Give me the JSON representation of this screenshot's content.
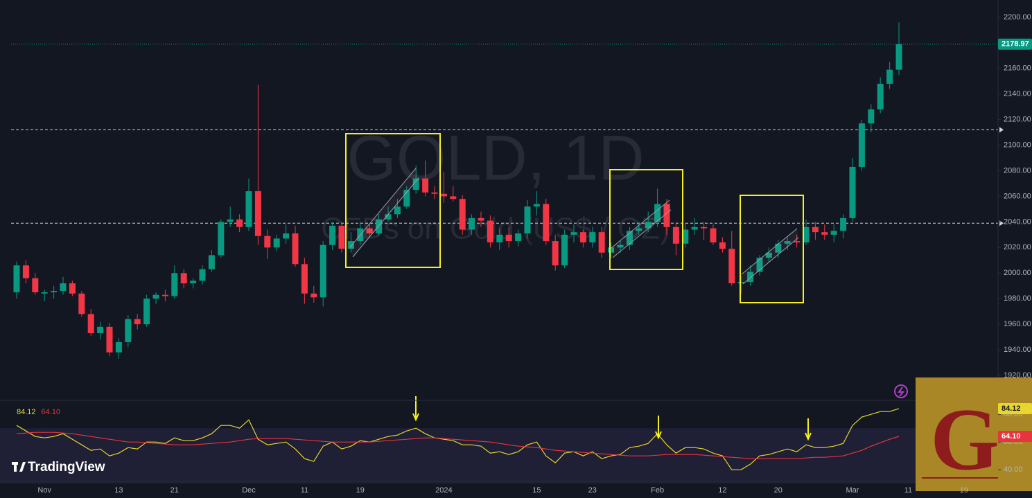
{
  "chart_data": [
    {
      "type": "candlestick",
      "title": "GOLD, 1D",
      "subtitle": "CFDs on Gold (US$ / OZ)",
      "brand": "TradingView",
      "logo": "G",
      "categories": [
        null,
        null,
        null,
        "Nov",
        null,
        null,
        null,
        null,
        null,
        null,
        null,
        "13",
        null,
        null,
        null,
        null,
        null,
        "21",
        null,
        null,
        null,
        null,
        null,
        null,
        null,
        "Dec",
        null,
        null,
        null,
        null,
        null,
        "11",
        null,
        null,
        null,
        null,
        null,
        "19",
        null,
        null,
        null,
        null,
        null,
        null,
        null,
        null,
        "2024",
        null,
        null,
        null,
        null,
        null,
        null,
        null,
        null,
        null,
        "15",
        null,
        null,
        null,
        null,
        null,
        "23",
        null,
        null,
        null,
        null,
        null,
        null,
        "Feb",
        null,
        null,
        null,
        null,
        null,
        null,
        "12",
        null,
        null,
        null,
        null,
        null,
        "20",
        null,
        null,
        null,
        null,
        null,
        null,
        null,
        "Mar",
        null,
        null,
        null,
        null,
        null,
        "11",
        null,
        null,
        null,
        null,
        null,
        "19",
        null
      ],
      "open": [
        1985,
        2006,
        1996,
        1984,
        1985,
        1986,
        1992,
        1984,
        1968,
        1953,
        1958,
        1938,
        1946,
        1964,
        1960,
        1980,
        1983,
        1982,
        2000,
        1992,
        1994,
        2003,
        2014,
        2040,
        2042,
        2036,
        2064,
        2029,
        2020,
        2027,
        2031,
        2007,
        1984,
        1981,
        2022,
        2037,
        2019,
        2025,
        2035,
        2031,
        2042,
        2046,
        2052,
        2065,
        2074,
        2063,
        2062,
        2060,
        2058,
        2034,
        2043,
        2041,
        2024,
        2030,
        2025,
        2031,
        2052,
        2054,
        2025,
        2006,
        2030,
        2032,
        2024,
        2032,
        2016,
        2020,
        2022,
        2033,
        2035,
        2040,
        2054,
        2036,
        2023,
        2034,
        2036,
        2035,
        2024,
        2019,
        1992,
        1993,
        2001,
        2012,
        2016,
        2023,
        2025,
        2024,
        2036,
        2032,
        2030,
        2033,
        2043,
        2083,
        2117,
        2128,
        2148,
        2159,
        null,
        null,
        null,
        null,
        null,
        null,
        null,
        null
      ],
      "high": [
        2009,
        2010,
        2000,
        1987,
        1990,
        1997,
        1994,
        1986,
        1972,
        1962,
        1961,
        1949,
        1967,
        1968,
        1983,
        1985,
        1987,
        2006,
        2003,
        1996,
        2006,
        2018,
        2042,
        2052,
        2046,
        2074,
        2147,
        2034,
        2030,
        2038,
        2037,
        2012,
        1990,
        2025,
        2040,
        2040,
        2032,
        2040,
        2039,
        2046,
        2052,
        2058,
        2068,
        2084,
        2088,
        2068,
        2079,
        2068,
        2061,
        2046,
        2048,
        2045,
        2035,
        2036,
        2034,
        2057,
        2064,
        2058,
        2030,
        2034,
        2038,
        2034,
        2036,
        2036,
        2024,
        2026,
        2036,
        2040,
        2048,
        2066,
        2058,
        2040,
        2039,
        2043,
        2040,
        2038,
        2028,
        2033,
        1998,
        2006,
        2014,
        2020,
        2026,
        2028,
        2030,
        2042,
        2040,
        2038,
        2038,
        2046,
        2090,
        2120,
        2132,
        2153,
        2165,
        2196,
        null,
        null,
        null,
        null,
        null,
        null,
        null,
        null
      ],
      "low": [
        1980,
        1992,
        1983,
        1978,
        1980,
        1983,
        1982,
        1966,
        1951,
        1948,
        1935,
        1933,
        1942,
        1956,
        1958,
        1976,
        1978,
        1980,
        1988,
        1988,
        1991,
        2001,
        2012,
        2036,
        2032,
        2033,
        2022,
        2011,
        2017,
        2023,
        2005,
        1976,
        1977,
        1974,
        2018,
        2016,
        2016,
        2022,
        2028,
        2029,
        2040,
        2043,
        2050,
        2062,
        2060,
        2058,
        2055,
        2056,
        2030,
        2030,
        2036,
        2020,
        2018,
        2020,
        2021,
        2027,
        2045,
        2022,
        2002,
        2004,
        2024,
        2020,
        2020,
        2012,
        2012,
        2016,
        2018,
        2030,
        2032,
        2036,
        2030,
        2014,
        2020,
        2030,
        2026,
        2022,
        2016,
        1990,
        1984,
        1990,
        1998,
        2008,
        2012,
        2018,
        2020,
        2022,
        2026,
        2026,
        2024,
        2027,
        2040,
        2080,
        2110,
        2125,
        2144,
        2155,
        null,
        null,
        null,
        null,
        null,
        null,
        null,
        null
      ],
      "close": [
        2006,
        1996,
        1985,
        1985,
        1986,
        1992,
        1984,
        1968,
        1953,
        1958,
        1938,
        1946,
        1964,
        1960,
        1980,
        1983,
        1982,
        2000,
        1992,
        1994,
        2003,
        2014,
        2040,
        2042,
        2036,
        2064,
        2029,
        2020,
        2027,
        2031,
        2007,
        1984,
        1981,
        2022,
        2037,
        2019,
        2025,
        2035,
        2031,
        2042,
        2046,
        2052,
        2065,
        2074,
        2063,
        2062,
        2060,
        2058,
        2034,
        2043,
        2041,
        2024,
        2030,
        2025,
        2031,
        2052,
        2054,
        2025,
        2006,
        2030,
        2032,
        2024,
        2032,
        2016,
        2020,
        2022,
        2033,
        2035,
        2040,
        2054,
        2036,
        2023,
        2034,
        2036,
        2035,
        2024,
        2019,
        1992,
        1993,
        2001,
        2012,
        2016,
        2023,
        2025,
        2024,
        2036,
        2032,
        2030,
        2033,
        2043,
        2083,
        2117,
        2128,
        2148,
        2159,
        2178.97,
        null,
        null,
        null,
        null,
        null,
        null,
        null,
        null
      ],
      "up_color": "#089981",
      "down_color": "#f23645",
      "ylim": [
        1900.5,
        2213.5
      ],
      "yticks": [
        {
          "value": 1920,
          "label": "1920.00"
        },
        {
          "value": 1940,
          "label": "1940.00"
        },
        {
          "value": 1960,
          "label": "1960.00"
        },
        {
          "value": 1980,
          "label": "1980.00"
        },
        {
          "value": 2000,
          "label": "2000.00"
        },
        {
          "value": 2020,
          "label": "2020.00"
        },
        {
          "value": 2040,
          "label": "2040.00"
        },
        {
          "value": 2060,
          "label": "2060.00"
        },
        {
          "value": 2080,
          "label": "2080.00"
        },
        {
          "value": 2100,
          "label": "2100.00"
        },
        {
          "value": 2120,
          "label": "2120.00"
        },
        {
          "value": 2140,
          "label": "2140.00"
        },
        {
          "value": 2160,
          "label": "2160.00"
        },
        {
          "value": 2180,
          "label": "2180.00"
        },
        {
          "value": 2200,
          "label": "2200.00"
        }
      ],
      "grid": false,
      "last_price": 2178.97,
      "hlines": [
        2112,
        2039
      ]
    },
    {
      "type": "line",
      "ylim": [
        31.6,
        90.1
      ],
      "yticks": [
        {
          "value": 40,
          "label": "40.00"
        },
        {
          "value": 60,
          "label": "60.00"
        },
        {
          "value": 80,
          "label": "80.00"
        }
      ],
      "band": [
        30,
        70
      ],
      "series": [
        {
          "color": "#e8d62e",
          "current": 84.12,
          "values": [
            72,
            68,
            64,
            63,
            64,
            66,
            62,
            58,
            54,
            55,
            50,
            52,
            56,
            55,
            60,
            60,
            59,
            63,
            61,
            61,
            63,
            66,
            72,
            72,
            70,
            76,
            62,
            58,
            59,
            60,
            55,
            48,
            46,
            57,
            60,
            55,
            57,
            61,
            60,
            62,
            64,
            65,
            68,
            70,
            66,
            63,
            62,
            61,
            58,
            58,
            57,
            52,
            53,
            51,
            53,
            58,
            60,
            50,
            45,
            52,
            53,
            50,
            53,
            48,
            50,
            51,
            56,
            57,
            59,
            66,
            58,
            52,
            56,
            56,
            55,
            52,
            50,
            40,
            40,
            44,
            50,
            51,
            53,
            55,
            53,
            58,
            56,
            56,
            57,
            59,
            72,
            78,
            80,
            82,
            82,
            84.12,
            null,
            null,
            null,
            null,
            null,
            null,
            null,
            null
          ]
        },
        {
          "color": "#e8343f",
          "current": {
            "value": 64.1,
            "label": "64.10"
          },
          "values": [
            66,
            66.5,
            67,
            67,
            67,
            66.5,
            66,
            65,
            64,
            63,
            62,
            61,
            60,
            60,
            59.5,
            59,
            58.5,
            58,
            58,
            58,
            58.5,
            59,
            59.5,
            60,
            61,
            62,
            62.5,
            62.5,
            62.5,
            62.5,
            62,
            61.5,
            61,
            60.5,
            60,
            60,
            60,
            60,
            60,
            60.5,
            61,
            61.5,
            62,
            62.5,
            63,
            63,
            62.5,
            62,
            61.5,
            61,
            60.5,
            60,
            59,
            58,
            57,
            56.5,
            56,
            55,
            54,
            53.5,
            53,
            52.5,
            52,
            51.5,
            51,
            50.5,
            50,
            50,
            50,
            50.5,
            51,
            51,
            51,
            51,
            50.5,
            50,
            49.5,
            49,
            48.5,
            48,
            48,
            48,
            48,
            48,
            48,
            48.5,
            49,
            49,
            49.5,
            50,
            52,
            54,
            57,
            59.5,
            62,
            64.1,
            null,
            null,
            null,
            null,
            null,
            null,
            null,
            null
          ]
        }
      ]
    }
  ]
}
